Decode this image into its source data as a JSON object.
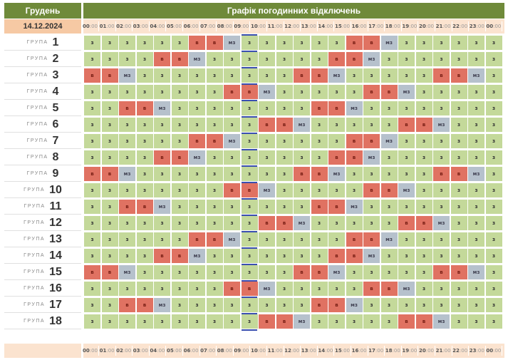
{
  "header": {
    "month": "Грудень",
    "title": "Графік погодинних відключень"
  },
  "date": "14.12.2024",
  "hours": [
    {
      "h": "00",
      "m": ":00"
    },
    {
      "h": "01",
      "m": ":00"
    },
    {
      "h": "02",
      "m": ":00"
    },
    {
      "h": "03",
      "m": ":00"
    },
    {
      "h": "04",
      "m": ":00"
    },
    {
      "h": "05",
      "m": ":00"
    },
    {
      "h": "06",
      "m": ":00"
    },
    {
      "h": "07",
      "m": ":00"
    },
    {
      "h": "08",
      "m": ":00"
    },
    {
      "h": "09",
      "m": ":00"
    },
    {
      "h": "10",
      "m": ":00"
    },
    {
      "h": "11",
      "m": ":00"
    },
    {
      "h": "12",
      "m": ":00"
    },
    {
      "h": "13",
      "m": ":00"
    },
    {
      "h": "14",
      "m": ":00"
    },
    {
      "h": "15",
      "m": ":00"
    },
    {
      "h": "16",
      "m": ":00"
    },
    {
      "h": "17",
      "m": ":00"
    },
    {
      "h": "18",
      "m": ":00"
    },
    {
      "h": "19",
      "m": ":00"
    },
    {
      "h": "20",
      "m": ":00"
    },
    {
      "h": "21",
      "m": ":00"
    },
    {
      "h": "22",
      "m": ":00"
    },
    {
      "h": "23",
      "m": ":00"
    },
    {
      "h": "00",
      "m": ":00"
    }
  ],
  "group_word": "ГРУПА",
  "status_labels": {
    "z": "з",
    "v": "в",
    "m": "мз"
  },
  "status_colors": {
    "z": "#c4d99a",
    "v": "#e07262",
    "m": "#b6c1cc"
  },
  "current_hour_index": 9,
  "groups": [
    {
      "num": "1",
      "cells": "zzzzzzvvmzzzzzzvvmzzzzzz"
    },
    {
      "num": "2",
      "cells": "zzzzvvmzzzzzzzvvmzzzzzzz"
    },
    {
      "num": "3",
      "cells": "vvmzzzzzzzzzvvmzzzzzvvmz"
    },
    {
      "num": "4",
      "cells": "zzzzzzzzvvmzzzzzvvmzzzzz"
    },
    {
      "num": "5",
      "cells": "zzvvmzzzzzzzzvvmzzzzzzzz"
    },
    {
      "num": "6",
      "cells": "zzzzzzzzzzvvmzzzzzvvmzzz"
    },
    {
      "num": "7",
      "cells": "zzzzzzvvmzzzzzzvvmzzzzzz"
    },
    {
      "num": "8",
      "cells": "zzzzvvmzzzzzzzvvmzzzzzzz"
    },
    {
      "num": "9",
      "cells": "vvmzzzzzzzzzvvmzzzzzvvmz"
    },
    {
      "num": "10",
      "cells": "zzzzzzzzvvmzzzzzvvmzzzzz"
    },
    {
      "num": "11",
      "cells": "zzvvmzzzzzzzzvvmzzzzzzzz"
    },
    {
      "num": "12",
      "cells": "zzzzzzzzzzvvmzzzzzvvmzzz"
    },
    {
      "num": "13",
      "cells": "zzzzzzvvmzzzzzzvvmzzzzzz"
    },
    {
      "num": "14",
      "cells": "zzzzvvmzzzzzzzvvmzzzzzzz"
    },
    {
      "num": "15",
      "cells": "vvmzzzzzzzzzvvmzzzzzvvmz"
    },
    {
      "num": "16",
      "cells": "zzzzzzzzvvmzzzzzvvmzzzzz"
    },
    {
      "num": "17",
      "cells": "zzvvmzzzzzzzzvvmzzzzzzzz"
    },
    {
      "num": "18",
      "cells": "zzzzzzzzzzvvmzzzzzvvmzzz"
    }
  ]
}
